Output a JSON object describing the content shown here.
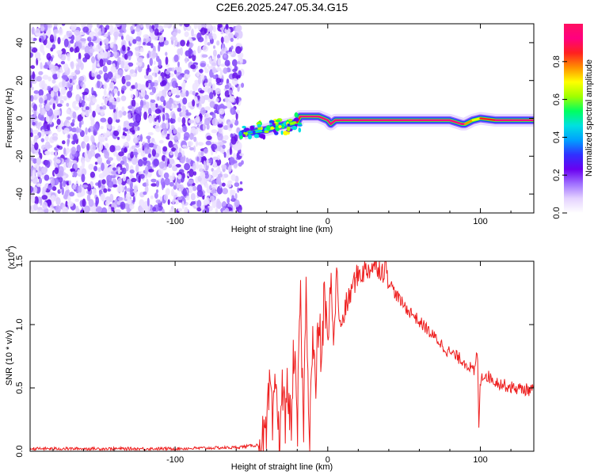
{
  "title": "C2E6.2025.247.05.34.G15",
  "chart_data": [
    {
      "type": "heatmap",
      "panel": "spectrogram",
      "xlabel": "Height of straight line (km)",
      "ylabel": "Frequency (Hz)",
      "xlim": [
        -195,
        135
      ],
      "ylim": [
        -50,
        50
      ],
      "xticks": [
        -100,
        0,
        100
      ],
      "yticks": [
        -40,
        -20,
        0,
        20,
        40
      ],
      "colorbar": {
        "label": "Normalized spectral amplitude",
        "range": [
          0,
          1
        ],
        "ticks": [
          "0.0",
          "0.2",
          "0.4",
          "0.6",
          "0.8"
        ],
        "colormap": [
          "#ffffff",
          "#e4d2ff",
          "#a070ff",
          "#6a00f0",
          "#3030ff",
          "#00a0ff",
          "#00e0e0",
          "#00ff60",
          "#a0ff00",
          "#ffff00",
          "#ff9000",
          "#ff2020",
          "#ff0080",
          "#ff1060"
        ]
      },
      "noise_region_x": [
        -195,
        -55
      ],
      "ridge": {
        "x": [
          -55,
          -48,
          -40,
          -32,
          -25,
          -20,
          -18,
          -10,
          -6,
          -3,
          0,
          2,
          5,
          10,
          20,
          40,
          60,
          80,
          88,
          90,
          95,
          100,
          110,
          120,
          135
        ],
        "freq": [
          -8,
          -7,
          -6,
          -4,
          -3,
          -2,
          1,
          1,
          1,
          0,
          -1,
          -3,
          -1,
          -1,
          -1,
          -1,
          -1,
          -1,
          -3,
          -3,
          -1,
          0,
          -1,
          -1,
          -1
        ],
        "amplitude": [
          0.35,
          0.4,
          0.45,
          0.5,
          0.55,
          0.7,
          0.95,
          0.95,
          0.95,
          0.95,
          0.95,
          0.9,
          0.95,
          0.95,
          0.95,
          0.95,
          0.95,
          0.95,
          0.9,
          0.9,
          0.6,
          0.8,
          0.95,
          0.95,
          0.95
        ]
      }
    },
    {
      "type": "line",
      "panel": "snr",
      "xlabel": "Height of straight line (km)",
      "ylabel": "SNR (10 * v/v)",
      "y_multiplier_label": "(x10",
      "y_multiplier_exp": "4",
      "y_multiplier_close": ")",
      "xlim": [
        -195,
        135
      ],
      "ylim": [
        0,
        1.5
      ],
      "xticks": [
        -100,
        0,
        100
      ],
      "yticks": [
        "0.0",
        "0.5",
        "1.0",
        "1.5"
      ],
      "series": [
        {
          "color": "#ee2020",
          "x": [
            -195,
            -100,
            -60,
            -45,
            -40,
            -38,
            -36,
            -34,
            -32,
            -30,
            -28,
            -26,
            -24,
            -22,
            -20,
            -18,
            -16,
            -14,
            -12,
            -10,
            -8,
            -6,
            -4,
            -2,
            0,
            2,
            4,
            6,
            8,
            10,
            12,
            14,
            16,
            18,
            20,
            24,
            28,
            32,
            36,
            38,
            40,
            44,
            48,
            52,
            56,
            60,
            64,
            68,
            72,
            76,
            80,
            84,
            88,
            92,
            96,
            98,
            99,
            100,
            101,
            104,
            110,
            116,
            122,
            128,
            135
          ],
          "y": [
            0.02,
            0.02,
            0.03,
            0.05,
            0.1,
            0.55,
            0.12,
            0.6,
            0.08,
            0.5,
            0.25,
            0.55,
            0.1,
            0.9,
            0.05,
            1.3,
            0.15,
            1.35,
            0.05,
            0.9,
            0.45,
            1.05,
            0.7,
            1.3,
            0.75,
            1.4,
            0.85,
            1.45,
            0.95,
            1.05,
            1.15,
            1.2,
            1.3,
            1.35,
            1.4,
            1.42,
            1.45,
            1.48,
            1.42,
            1.47,
            1.35,
            1.25,
            1.18,
            1.12,
            1.08,
            1.02,
            0.98,
            0.92,
            0.88,
            0.82,
            0.78,
            0.75,
            0.72,
            0.68,
            0.62,
            0.8,
            0.22,
            0.55,
            0.6,
            0.6,
            0.55,
            0.52,
            0.5,
            0.49,
            0.48
          ]
        }
      ]
    }
  ]
}
